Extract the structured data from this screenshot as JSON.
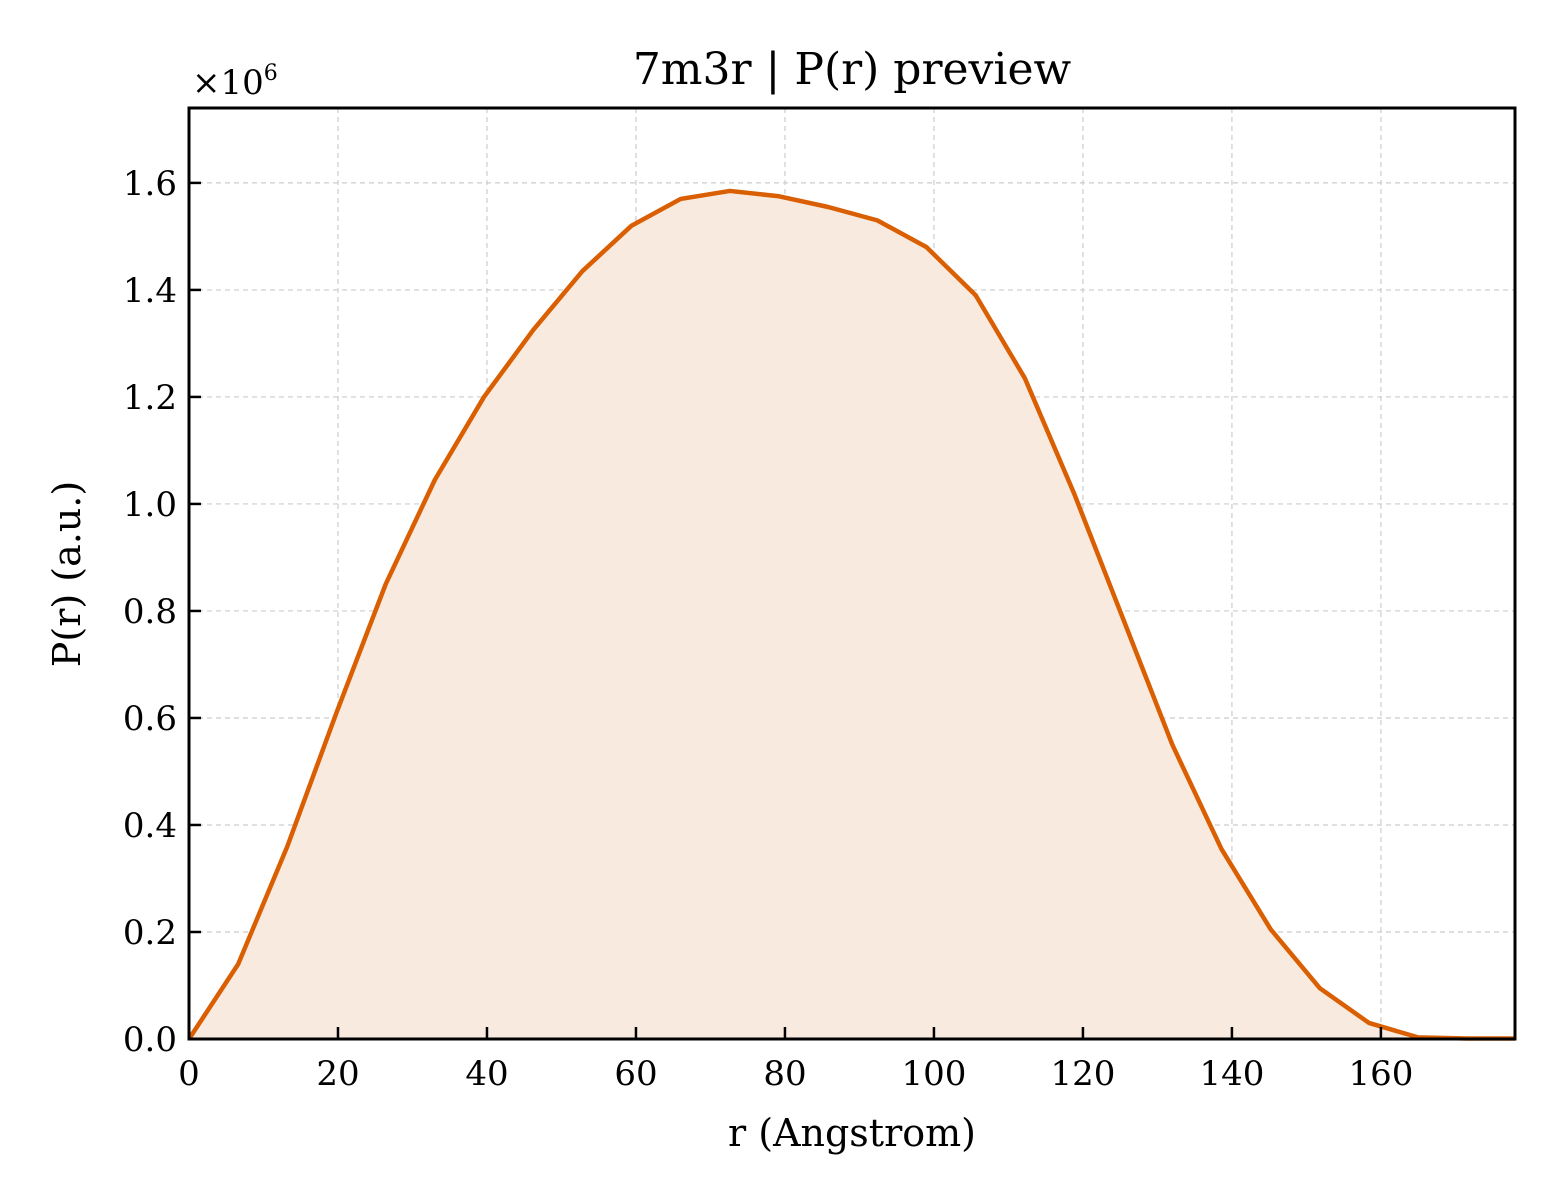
{
  "colors": {
    "line": "#d95f02",
    "fill": "#f9eadf",
    "grid": "#cccccc",
    "axes": "#000000",
    "background": "#ffffff"
  },
  "chart_data": {
    "type": "area",
    "title": "7m3r | P(r) preview",
    "xlabel": "r (Angstrom)",
    "ylabel": "P(r) (a.u.)",
    "y_multiplier": {
      "base": "×10",
      "exponent": "6"
    },
    "xlim": [
      0,
      178
    ],
    "ylim": [
      0,
      1.74
    ],
    "y_scale": 1000000,
    "grid": true,
    "x_ticks": [
      0,
      20,
      40,
      60,
      80,
      100,
      120,
      140,
      160
    ],
    "y_ticks": [
      "0.0",
      "0.2",
      "0.4",
      "0.6",
      "0.8",
      "1.0",
      "1.2",
      "1.4",
      "1.6"
    ],
    "series": [
      {
        "x": [
          0,
          6.6,
          13.2,
          19.8,
          26.4,
          33.0,
          39.6,
          46.2,
          52.8,
          59.4,
          66.0,
          72.6,
          79.2,
          85.8,
          92.4,
          99.0,
          105.6,
          112.2,
          118.8,
          125.4,
          132.0,
          138.6,
          145.2,
          151.8,
          158.4,
          165.0,
          171.6,
          178.0
        ],
        "y": [
          0.0,
          0.14,
          0.36,
          0.61,
          0.85,
          1.045,
          1.2,
          1.325,
          1.435,
          1.52,
          1.57,
          1.585,
          1.575,
          1.555,
          1.53,
          1.48,
          1.39,
          1.235,
          1.02,
          0.785,
          0.55,
          0.355,
          0.205,
          0.095,
          0.03,
          0.003,
          0.001,
          0.001
        ]
      }
    ]
  }
}
